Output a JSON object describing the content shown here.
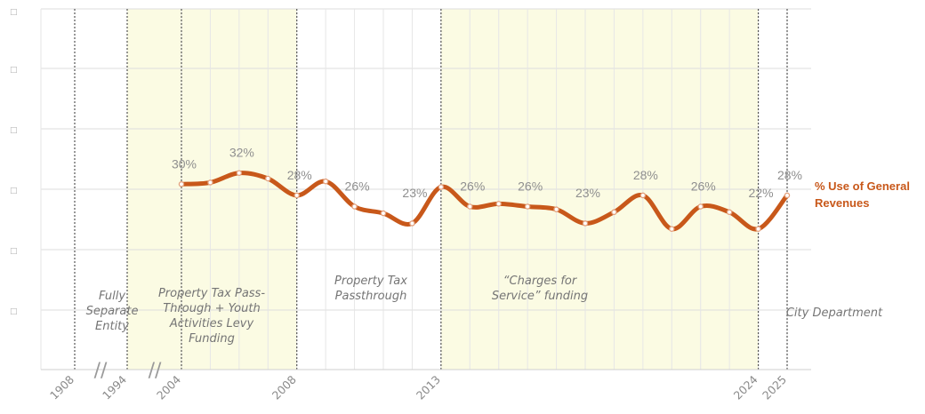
{
  "chart_data": {
    "type": "line",
    "series": [
      {
        "name": "% Use of General Revenues",
        "color": "#c8581a",
        "points": [
          {
            "x": 2004,
            "y": 30.0,
            "label": "30%"
          },
          {
            "x": 2005,
            "y": 30.3
          },
          {
            "x": 2006,
            "y": 32.0,
            "label": "32%"
          },
          {
            "x": 2007,
            "y": 31.0
          },
          {
            "x": 2008,
            "y": 28.0,
            "label": "28%"
          },
          {
            "x": 2009,
            "y": 30.5
          },
          {
            "x": 2010,
            "y": 26.0,
            "label": "26%"
          },
          {
            "x": 2011,
            "y": 24.8
          },
          {
            "x": 2012,
            "y": 23.0,
            "label": "23%"
          },
          {
            "x": 2013,
            "y": 29.5
          },
          {
            "x": 2014,
            "y": 26.0,
            "label": "26%"
          },
          {
            "x": 2015,
            "y": 26.5
          },
          {
            "x": 2016,
            "y": 26.0,
            "label": "26%"
          },
          {
            "x": 2017,
            "y": 25.5
          },
          {
            "x": 2018,
            "y": 23.0,
            "label": "23%"
          },
          {
            "x": 2019,
            "y": 25.0
          },
          {
            "x": 2020,
            "y": 28.0,
            "label": "28%"
          },
          {
            "x": 2021,
            "y": 22.0
          },
          {
            "x": 2022,
            "y": 26.0,
            "label": "26%"
          },
          {
            "x": 2023,
            "y": 25.0
          },
          {
            "x": 2024,
            "y": 22.0,
            "label": "22%"
          },
          {
            "x": 2025,
            "y": 28.0,
            "label": "28%"
          }
        ]
      }
    ],
    "x_tick_labels": [
      "1908",
      "1994",
      "2004",
      "2008",
      "2013",
      "2024",
      "2025"
    ],
    "eras": [
      {
        "label": "Fully Separate Entity",
        "lines": [
          "Fully",
          "Separate",
          "Entity"
        ],
        "from": "1908",
        "to": "1994",
        "shaded": false
      },
      {
        "label": "Property Tax Pass-Through + Youth Activities Levy Funding",
        "lines": [
          "Property Tax Pass-",
          "Through + Youth",
          "Activities Levy",
          "Funding"
        ],
        "from": "1994",
        "to": "2008",
        "shaded": true,
        "color": "#fbfbe3"
      },
      {
        "label": "Property Tax Passthrough",
        "lines": [
          "Property Tax",
          "Passthrough"
        ],
        "from": "2008",
        "to": "2013",
        "shaded": false
      },
      {
        "label": "“Charges for Service” funding",
        "lines": [
          "“Charges for",
          "Service” funding"
        ],
        "from": "2013",
        "to": "2024",
        "shaded": true,
        "color": "#fbfbe3"
      },
      {
        "label": "City Department",
        "lines": [
          "City Department"
        ],
        "from": "2024",
        "to": "2025",
        "shaded": false
      }
    ],
    "axis_breaks": [
      "//",
      "//"
    ],
    "y_tick_count": 6,
    "grid": true,
    "legend_position": "right"
  }
}
